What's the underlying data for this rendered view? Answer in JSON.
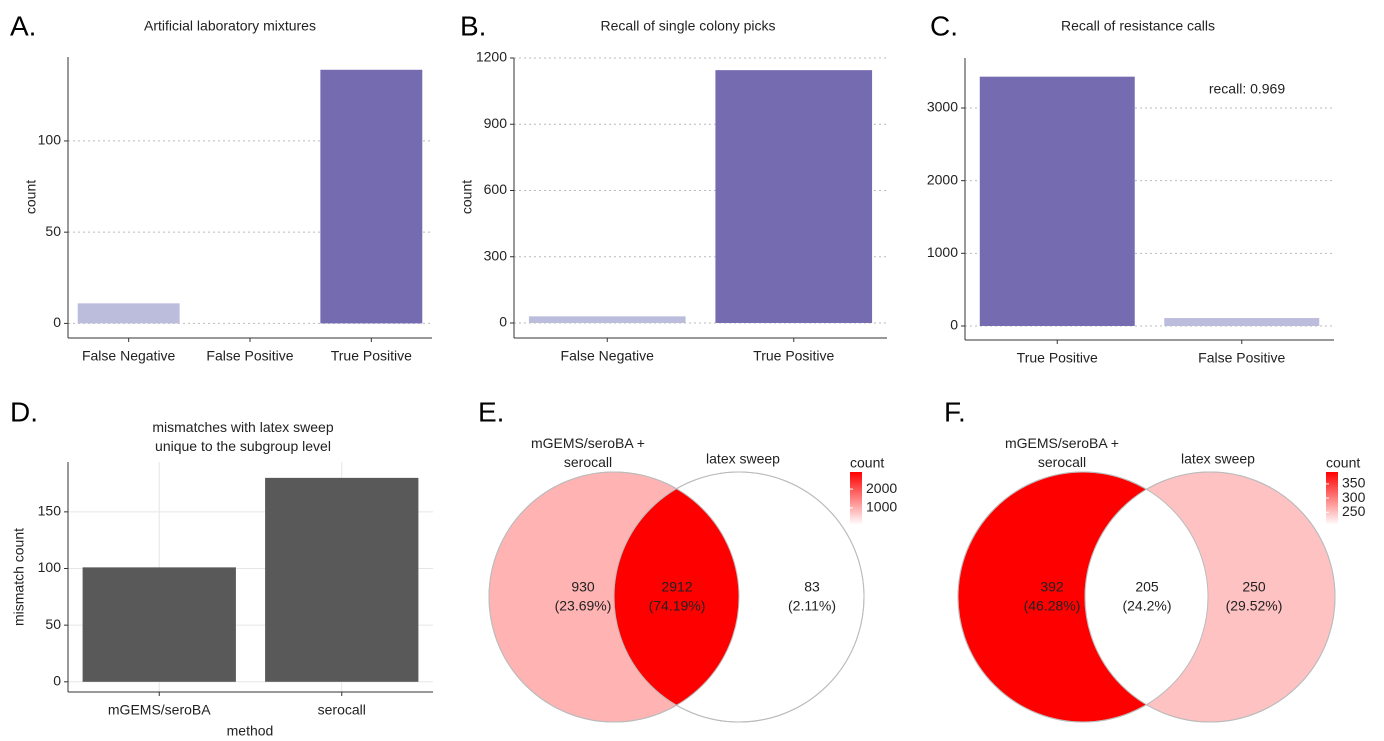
{
  "chart_data": [
    {
      "type": "bar",
      "panel": "A.",
      "title": "Artificial laboratory mixtures",
      "ylabel": "count",
      "categories": [
        "False Negative",
        "False Positive",
        "True Positive"
      ],
      "values": [
        11,
        0,
        139
      ],
      "colors": [
        "#bcbddc",
        "#bcbddc",
        "#756bb1"
      ],
      "ylim": [
        -8,
        146
      ],
      "yticks": [
        0,
        50,
        100
      ],
      "grid": true,
      "grid_style": "dotted"
    },
    {
      "type": "bar",
      "panel": "B.",
      "title": "Recall of single colony picks",
      "ylabel": "count",
      "categories": [
        "False Negative",
        "True Positive"
      ],
      "values": [
        30,
        1145
      ],
      "colors": [
        "#bcbddc",
        "#756bb1"
      ],
      "ylim": [
        -68,
        1200
      ],
      "yticks": [
        0,
        300,
        600,
        900,
        1200
      ],
      "grid": true,
      "grid_style": "dotted"
    },
    {
      "type": "bar",
      "panel": "C.",
      "title": "Recall of resistance calls",
      "annotation": "recall: 0.969",
      "categories": [
        "True Positive",
        "False Positive"
      ],
      "values": [
        3431,
        109
      ],
      "colors": [
        "#756bb1",
        "#bcbddc"
      ],
      "ylim": [
        -193,
        3688
      ],
      "yticks": [
        0,
        1000,
        2000,
        3000
      ],
      "grid": true,
      "grid_style": "dotted"
    },
    {
      "type": "bar",
      "panel": "D.",
      "title": "mismatches with latex sweep\nunique to the subgroup level",
      "xlabel": "method",
      "ylabel": "mismatch count",
      "categories": [
        "mGEMS/seroBA",
        "serocall"
      ],
      "values": [
        101,
        180
      ],
      "color": "#595959",
      "ylim": [
        -9,
        194
      ],
      "yticks": [
        0,
        50,
        100,
        150
      ],
      "grid": true,
      "grid_style": "solid"
    },
    {
      "type": "venn",
      "panel": "E.",
      "sets": [
        "mGEMS/seroBA +\nserocall",
        "latex sweep"
      ],
      "values": [
        930,
        2912,
        83
      ],
      "percent_labels": [
        "(23.69%)",
        "(74.19%)",
        "(2.11%)"
      ],
      "legend": {
        "title": "count",
        "ticks": [
          1000,
          2000
        ],
        "colorlim": [
          83,
          2912
        ],
        "colors": [
          "#ffffff",
          "#ff0000"
        ]
      }
    },
    {
      "type": "venn",
      "panel": "F.",
      "sets": [
        "mGEMS/seroBA +\nserocall",
        "latex sweep"
      ],
      "values": [
        392,
        205,
        250
      ],
      "percent_labels": [
        "(46.28%)",
        "(24.2%)",
        "(29.52%)"
      ],
      "legend": {
        "title": "count",
        "ticks": [
          250,
          300,
          350
        ],
        "colorlim": [
          205,
          392
        ],
        "colors": [
          "#ffffff",
          "#ff0000"
        ]
      }
    }
  ]
}
